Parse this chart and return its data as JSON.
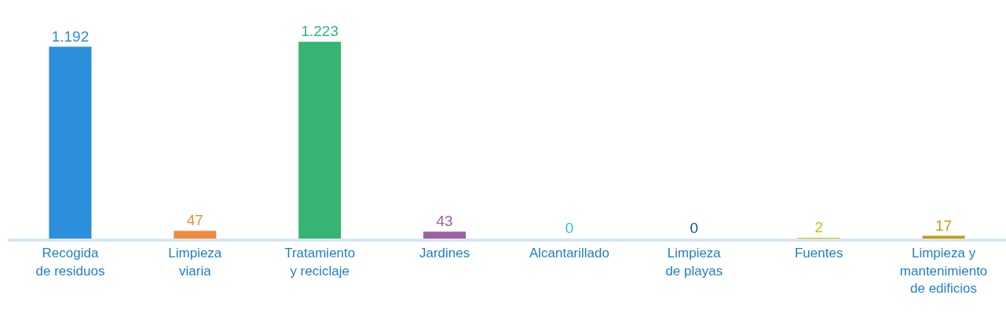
{
  "chart_data": {
    "type": "bar",
    "categories": [
      "Recogida\nde residuos",
      "Limpieza\nviaria",
      "Tratamiento\ny reciclaje",
      "Jardines",
      "Alcantarillado",
      "Limpieza\nde playas",
      "Fuentes",
      "Limpieza y\nmantenimiento\nde edificios"
    ],
    "values": [
      1192,
      47,
      1223,
      43,
      0,
      0,
      2,
      17
    ],
    "value_labels": [
      "1.192",
      "47",
      "1.223",
      "43",
      "0",
      "0",
      "2",
      "17"
    ],
    "colors": [
      "#2b8fdb",
      "#f28a3c",
      "#35b473",
      "#9e5fa3",
      "#2fbde6",
      "#0a5394",
      "#c3c600",
      "#cc9900"
    ]
  }
}
